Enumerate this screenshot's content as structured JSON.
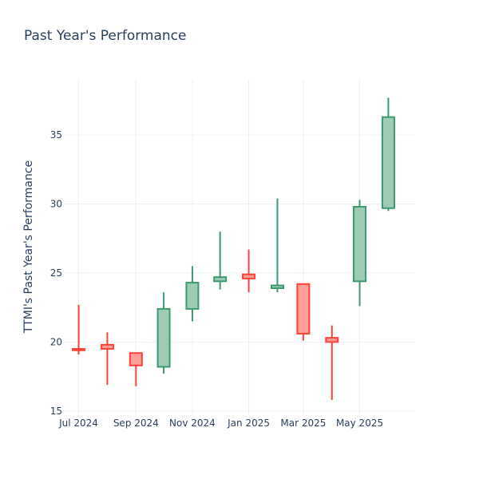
{
  "chart_data": {
    "type": "candlestick",
    "title": "Past Year's Performance",
    "ylabel": "TTMI's Past Year's Performance",
    "xlabel": "",
    "ylim": [
      14.7,
      39
    ],
    "xlim": [
      "2024-06-15",
      "2025-06-30"
    ],
    "grid": true,
    "yticks": [
      15,
      20,
      25,
      30,
      35
    ],
    "xticks": [
      {
        "date": "2024-07-01",
        "label": "Jul 2024"
      },
      {
        "date": "2024-09-01",
        "label": "Sep 2024"
      },
      {
        "date": "2024-11-01",
        "label": "Nov 2024"
      },
      {
        "date": "2025-01-01",
        "label": "Jan 2025"
      },
      {
        "date": "2025-03-01",
        "label": "Mar 2025"
      },
      {
        "date": "2025-05-01",
        "label": "May 2025"
      }
    ],
    "colors": {
      "increasing": "#3d9970",
      "increasing_fill": "#9ecbb4",
      "decreasing": "#ff4136",
      "decreasing_fill": "#ff9f9a"
    },
    "candles": [
      {
        "date": "2024-07-01",
        "open": 19.5,
        "high": 22.7,
        "low": 19.1,
        "close": 19.4
      },
      {
        "date": "2024-08-01",
        "open": 19.8,
        "high": 20.7,
        "low": 16.9,
        "close": 19.5
      },
      {
        "date": "2024-09-01",
        "open": 19.2,
        "high": 19.2,
        "low": 16.8,
        "close": 18.3
      },
      {
        "date": "2024-10-01",
        "open": 18.2,
        "high": 23.6,
        "low": 17.7,
        "close": 22.4
      },
      {
        "date": "2024-11-01",
        "open": 22.4,
        "high": 25.5,
        "low": 21.5,
        "close": 24.3
      },
      {
        "date": "2024-12-01",
        "open": 24.4,
        "high": 28.0,
        "low": 23.8,
        "close": 24.7
      },
      {
        "date": "2025-01-01",
        "open": 24.9,
        "high": 26.7,
        "low": 23.6,
        "close": 24.6
      },
      {
        "date": "2025-02-01",
        "open": 23.9,
        "high": 30.4,
        "low": 23.6,
        "close": 24.1
      },
      {
        "date": "2025-03-01",
        "open": 24.2,
        "high": 24.2,
        "low": 20.1,
        "close": 20.6
      },
      {
        "date": "2025-04-01",
        "open": 20.3,
        "high": 21.2,
        "low": 15.8,
        "close": 20.0
      },
      {
        "date": "2025-05-01",
        "open": 24.4,
        "high": 30.3,
        "low": 22.6,
        "close": 29.8
      },
      {
        "date": "2025-06-01",
        "open": 29.7,
        "high": 37.7,
        "low": 29.5,
        "close": 36.3
      }
    ]
  }
}
